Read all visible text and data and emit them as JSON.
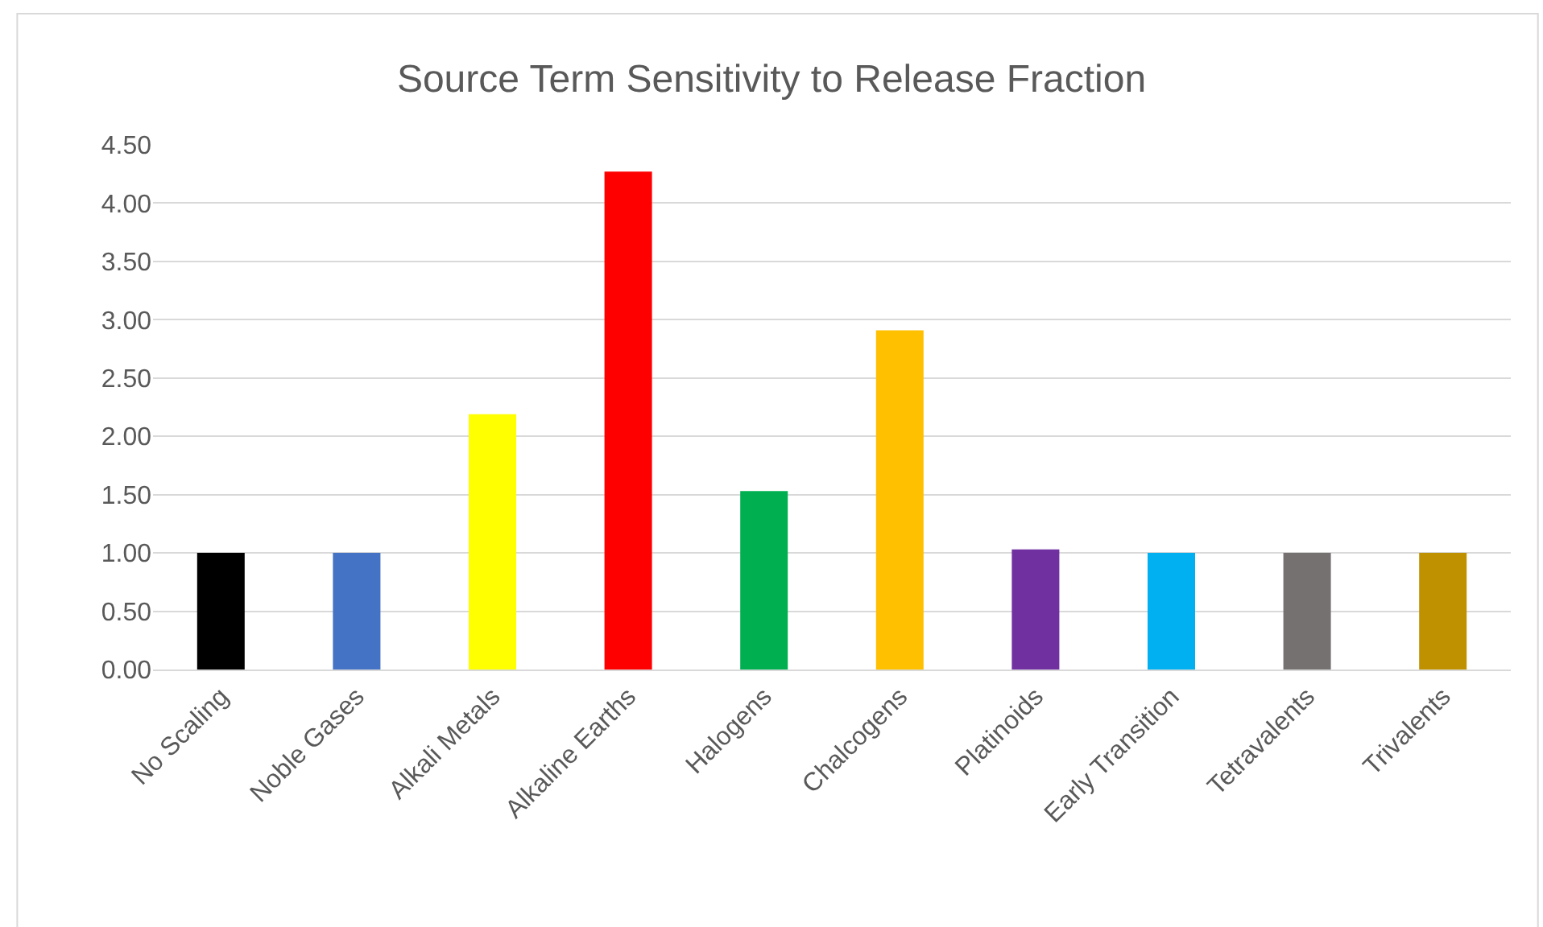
{
  "chart_data": {
    "type": "bar",
    "title": "Source Term Sensitivity to Release Fraction",
    "categories": [
      "No Scaling",
      "Noble Gases",
      "Alkali Metals",
      "Alkaline Earths",
      "Halogens",
      "Chalcogens",
      "Platinoids",
      "Early Transition",
      "Tetravalents",
      "Trivalents"
    ],
    "values": [
      1.0,
      1.0,
      2.19,
      4.27,
      1.53,
      2.91,
      1.03,
      1.0,
      1.0,
      1.0
    ],
    "colors": [
      "#000000",
      "#4472c4",
      "#ffff00",
      "#ff0000",
      "#00b050",
      "#ffc000",
      "#7030a0",
      "#00b0f0",
      "#767171",
      "#bf9000"
    ],
    "ylim": [
      0,
      4.5
    ],
    "yticks": [
      {
        "value": 0,
        "label": "0.00"
      },
      {
        "value": 0.5,
        "label": "0.50"
      },
      {
        "value": 1,
        "label": "1.00"
      },
      {
        "value": 1.5,
        "label": "1.50"
      },
      {
        "value": 2,
        "label": "2.00"
      },
      {
        "value": 2.5,
        "label": "2.50"
      },
      {
        "value": 3,
        "label": "3.00"
      },
      {
        "value": 3.5,
        "label": "3.50"
      },
      {
        "value": 4,
        "label": "4.00"
      },
      {
        "value": 4.5,
        "label": "4.50"
      }
    ],
    "grid": "y"
  }
}
